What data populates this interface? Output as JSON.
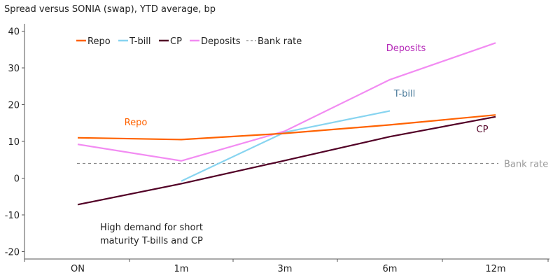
{
  "chart_data": {
    "type": "line",
    "title": "Spread versus SONIA (swap), YTD average, bp",
    "categories": [
      "ON",
      "1m",
      "3m",
      "6m",
      "12m"
    ],
    "ylim": [
      -22,
      42
    ],
    "yticks": [
      40,
      30,
      20,
      10,
      0,
      -10,
      -20
    ],
    "grid": false,
    "legend_position": "top-left",
    "series": [
      {
        "name": "Repo",
        "color": "#ff6200",
        "values": [
          11,
          10.5,
          12.2,
          14.5,
          17.2
        ],
        "label": "Repo",
        "label_color": "#ff6200"
      },
      {
        "name": "T-bill",
        "color": "#87d4f0",
        "values": [
          null,
          -0.8,
          12.5,
          18.3,
          null
        ],
        "label": "T-bill",
        "label_color": "#4a7a9a"
      },
      {
        "name": "CP",
        "color": "#520026",
        "values": [
          -7.2,
          -1.5,
          4.8,
          11.3,
          16.7
        ],
        "label": "CP",
        "label_color": "#520026"
      },
      {
        "name": "Deposits",
        "color": "#f28bf2",
        "values": [
          9.2,
          4.7,
          12.8,
          26.8,
          36.8
        ],
        "label": "Deposits",
        "label_color": "#b52ab8"
      }
    ],
    "reference_line": {
      "name": "Bank rate",
      "value": 4,
      "color": "#888888",
      "label": "Bank rate"
    },
    "annotation": [
      "High demand for short",
      "maturity T-bills and CP"
    ]
  }
}
